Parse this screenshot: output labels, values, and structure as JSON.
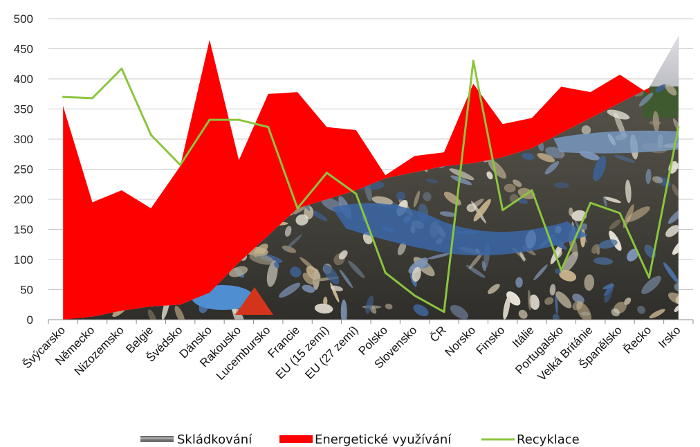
{
  "chart_data": {
    "type": "area",
    "categories": [
      "Švýcarsko",
      "Německo",
      "Nizozemsko",
      "Belgie",
      "Švédsko",
      "Dánsko",
      "Rakousko",
      "Lucembursko",
      "Francie",
      "EU (15 zemí)",
      "EU (27 zemí)",
      "Polsko",
      "Slovensko",
      "ČR",
      "Norsko",
      "Finsko",
      "Itálie",
      "Portugalsko",
      "Velká Británie",
      "Španělsko",
      "Řecko",
      "Irsko"
    ],
    "series": [
      {
        "name": "Skládkování",
        "kind": "area",
        "color": "#8a8a8a",
        "values": [
          2,
          5,
          15,
          22,
          25,
          45,
          95,
          140,
          185,
          200,
          215,
          235,
          245,
          255,
          260,
          270,
          285,
          310,
          335,
          360,
          385,
          470
        ]
      },
      {
        "name": "Energetické využívání",
        "kind": "area",
        "color": "#ff0000",
        "values": [
          355,
          195,
          215,
          185,
          255,
          465,
          265,
          375,
          378,
          320,
          315,
          240,
          272,
          278,
          392,
          325,
          335,
          387,
          378,
          407,
          375,
          null
        ]
      },
      {
        "name": "Recyklace",
        "kind": "line",
        "color": "#8bc53f",
        "values": [
          370,
          368,
          417,
          307,
          257,
          332,
          332,
          320,
          185,
          244,
          209,
          78,
          40,
          13,
          430,
          182,
          215,
          82,
          194,
          177,
          70,
          320
        ]
      }
    ],
    "yticks": [
      0,
      50,
      100,
      150,
      200,
      250,
      300,
      350,
      400,
      450,
      500
    ],
    "ylim": [
      0,
      500
    ],
    "grid": true,
    "legend_position": "bottom"
  },
  "legend": {
    "items": [
      {
        "label": "Skládkování",
        "color": "#6d6d6d"
      },
      {
        "label": "Energetické využívání",
        "color": "#ff0000"
      },
      {
        "label": "Recyklace",
        "color": "#8bc53f"
      }
    ]
  }
}
